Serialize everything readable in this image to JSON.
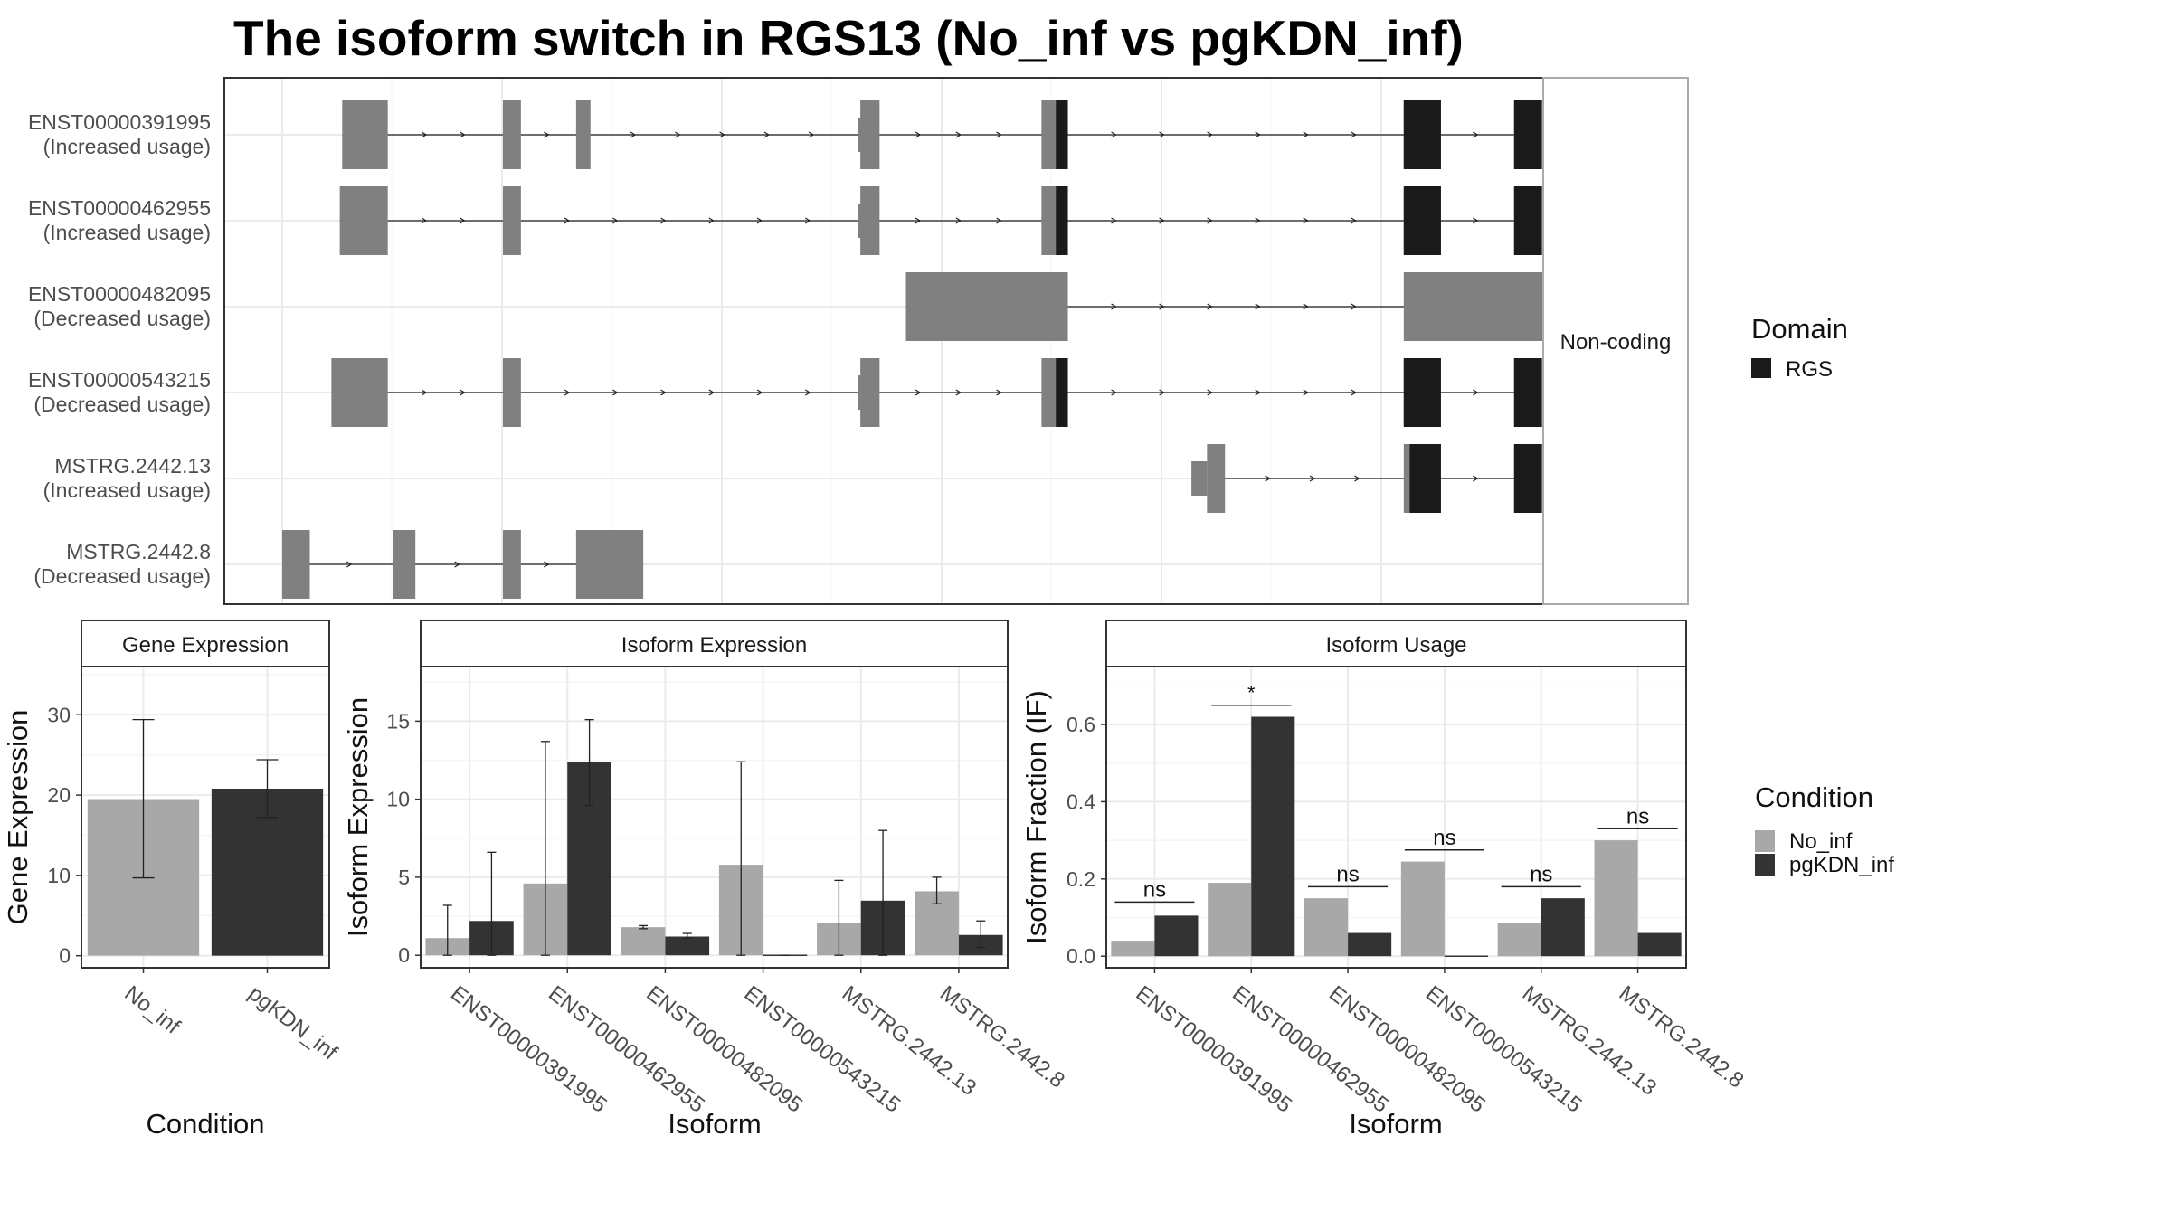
{
  "title": "The isoform switch in RGS13 (No_inf vs pgKDN_inf)",
  "colors": {
    "no_inf": "#a8a8a8",
    "pgkdn_inf": "#333333",
    "exon": "#808080",
    "domain": "#1a1a1a",
    "panel_border": "#333333",
    "strip_fill": "#ffffff",
    "grid": "#ebebeb"
  },
  "transcript_panel": {
    "facet_label": "Non-coding",
    "domain_legend_title": "Domain",
    "domain_legend_item": "RGS",
    "x_range": [
      0,
      1000
    ],
    "transcripts": [
      {
        "id": "ENST00000391995",
        "usage": "(Increased usage)",
        "exons": [
          [
            50,
            88
          ],
          [
            184,
            199
          ],
          [
            245,
            257
          ],
          [
            480,
            482
          ],
          [
            482,
            498
          ],
          [
            633,
            655
          ],
          [
            935,
            966
          ],
          [
            1027,
            1094
          ]
        ],
        "domains": [
          [
            645,
            655
          ],
          [
            935,
            966
          ],
          [
            1027,
            1050
          ]
        ],
        "utr_thin": [
          [
            480,
            482
          ],
          [
            1027,
            1050
          ]
        ]
      },
      {
        "id": "ENST00000462955",
        "usage": "(Increased usage)",
        "exons": [
          [
            48,
            88
          ],
          [
            184,
            199
          ],
          [
            480,
            482
          ],
          [
            482,
            498
          ],
          [
            633,
            655
          ],
          [
            935,
            966
          ],
          [
            1027,
            1094
          ]
        ],
        "domains": [
          [
            645,
            655
          ],
          [
            935,
            966
          ],
          [
            1027,
            1050
          ]
        ],
        "utr_thin": []
      },
      {
        "id": "ENST00000482095",
        "usage": "(Decreased usage)",
        "exons": [
          [
            520,
            655
          ],
          [
            935,
            1120
          ]
        ],
        "domains": [],
        "utr_thin": []
      },
      {
        "id": "ENST00000543215",
        "usage": "(Decreased usage)",
        "exons": [
          [
            41,
            88
          ],
          [
            184,
            199
          ],
          [
            480,
            482
          ],
          [
            482,
            498
          ],
          [
            633,
            655
          ],
          [
            935,
            966
          ],
          [
            1027,
            1094
          ]
        ],
        "domains": [
          [
            645,
            655
          ],
          [
            935,
            966
          ],
          [
            1027,
            1050
          ]
        ],
        "utr_thin": []
      },
      {
        "id": "MSTRG.2442.13",
        "usage": "(Increased usage)",
        "exons": [
          [
            758,
            771
          ],
          [
            771,
            786
          ],
          [
            935,
            966
          ],
          [
            1027,
            1094
          ]
        ],
        "domains": [
          [
            940,
            966
          ],
          [
            1027,
            1050
          ]
        ],
        "utr_thin": []
      },
      {
        "id": "MSTRG.2442.8",
        "usage": "(Decreased usage)",
        "exons": [
          [
            0,
            23
          ],
          [
            92,
            111
          ],
          [
            184,
            199
          ],
          [
            245,
            301
          ]
        ],
        "domains": [],
        "utr_thin": []
      }
    ]
  },
  "chart_data": [
    {
      "type": "bar",
      "panel_title": "Gene Expression",
      "xlabel": "Condition",
      "ylabel": "Gene Expression",
      "categories": [
        "No_inf",
        "pgKDN_inf"
      ],
      "values": [
        19.5,
        20.8
      ],
      "error_low": [
        9.7,
        17.2
      ],
      "error_high": [
        29.4,
        24.4
      ],
      "ylim": [
        -1.5,
        36
      ],
      "yticks": [
        0,
        10,
        20,
        30
      ]
    },
    {
      "type": "bar",
      "panel_title": "Isoform Expression",
      "xlabel": "Isoform",
      "ylabel": "Isoform Expression",
      "categories": [
        "ENST00000391995",
        "ENST00000462955",
        "ENST00000482095",
        "ENST00000543215",
        "MSTRG.2442.13",
        "MSTRG.2442.8"
      ],
      "series": [
        {
          "name": "No_inf",
          "values": [
            1.1,
            4.6,
            1.8,
            5.8,
            2.1,
            4.1
          ],
          "error_low": [
            0,
            0,
            1.7,
            0,
            0,
            3.3
          ],
          "error_high": [
            3.2,
            13.7,
            1.9,
            12.4,
            4.8,
            5.0
          ]
        },
        {
          "name": "pgKDN_inf",
          "values": [
            2.2,
            12.4,
            1.2,
            0.0,
            3.5,
            1.3
          ],
          "error_low": [
            0,
            9.6,
            1.1,
            0,
            0,
            0.5
          ],
          "error_high": [
            6.6,
            15.1,
            1.4,
            0,
            8.0,
            2.2
          ]
        }
      ],
      "ylim": [
        -0.8,
        18.5
      ],
      "yticks": [
        0,
        5,
        10,
        15
      ]
    },
    {
      "type": "bar",
      "panel_title": "Isoform Usage",
      "xlabel": "Isoform",
      "ylabel": "Isoform Fraction (IF)",
      "categories": [
        "ENST00000391995",
        "ENST00000462955",
        "ENST00000482095",
        "ENST00000543215",
        "MSTRG.2442.13",
        "MSTRG.2442.8"
      ],
      "series": [
        {
          "name": "No_inf",
          "values": [
            0.04,
            0.19,
            0.15,
            0.245,
            0.085,
            0.3
          ]
        },
        {
          "name": "pgKDN_inf",
          "values": [
            0.105,
            0.62,
            0.06,
            0.0,
            0.15,
            0.06
          ]
        }
      ],
      "annotations": [
        "ns",
        "*",
        "ns",
        "ns",
        "ns",
        "ns"
      ],
      "annotation_y": [
        0.14,
        0.65,
        0.18,
        0.275,
        0.18,
        0.33
      ],
      "ylim": [
        -0.03,
        0.75
      ],
      "yticks": [
        0.0,
        0.2,
        0.4,
        0.6
      ],
      "ytick_labels": [
        "0.0",
        "0.2",
        "0.4",
        "0.6"
      ]
    }
  ],
  "condition_legend": {
    "title": "Condition",
    "items": [
      "No_inf",
      "pgKDN_inf"
    ]
  }
}
